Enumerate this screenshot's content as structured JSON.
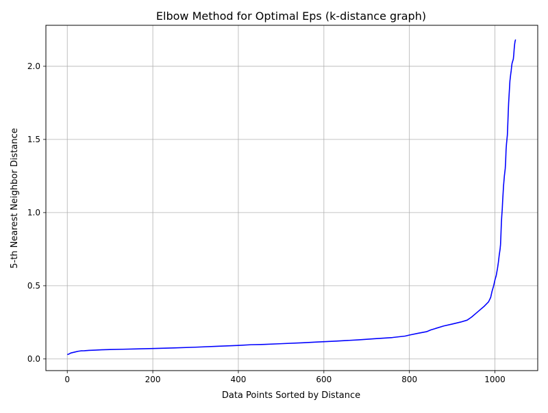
{
  "chart_data": {
    "type": "line",
    "title": "Elbow Method for Optimal Eps (k-distance graph)",
    "xlabel": "Data Points Sorted by Distance",
    "ylabel": "5-th Nearest Neighbor Distance",
    "xlim": [
      -50,
      1100
    ],
    "ylim": [
      -0.08,
      2.28
    ],
    "xticks": [
      0,
      200,
      400,
      600,
      800,
      1000
    ],
    "yticks": [
      0.0,
      0.5,
      1.0,
      1.5,
      2.0
    ],
    "xtick_labels": [
      "0",
      "200",
      "400",
      "600",
      "800",
      "1000"
    ],
    "ytick_labels": [
      "0.0",
      "0.5",
      "1.0",
      "1.5",
      "2.0"
    ],
    "grid": true,
    "line_color": "#0000ff",
    "series": [
      {
        "x": [
          0,
          3,
          8,
          12,
          18,
          25,
          32,
          40,
          50,
          65,
          80,
          100,
          130,
          160,
          200,
          250,
          300,
          350,
          400,
          430,
          460,
          500,
          550,
          580,
          630,
          680,
          720,
          760,
          790,
          800,
          820,
          840,
          850,
          860,
          880,
          900,
          920,
          935,
          945,
          955,
          965,
          975,
          985,
          990,
          993,
          997,
          1000,
          1003,
          1006,
          1008,
          1010,
          1012,
          1013,
          1014,
          1015,
          1016,
          1017,
          1018,
          1020,
          1022,
          1024,
          1025,
          1026,
          1027,
          1028,
          1029,
          1030,
          1031,
          1032,
          1033,
          1035,
          1037,
          1038,
          1039,
          1040,
          1041,
          1042,
          1043,
          1044,
          1045,
          1046,
          1047,
          1048,
          1049
        ],
        "y": [
          0.03,
          0.032,
          0.04,
          0.043,
          0.047,
          0.052,
          0.055,
          0.056,
          0.058,
          0.06,
          0.062,
          0.064,
          0.066,
          0.068,
          0.071,
          0.075,
          0.08,
          0.086,
          0.092,
          0.097,
          0.099,
          0.104,
          0.11,
          0.115,
          0.122,
          0.13,
          0.138,
          0.146,
          0.156,
          0.163,
          0.175,
          0.186,
          0.198,
          0.207,
          0.225,
          0.238,
          0.252,
          0.265,
          0.285,
          0.31,
          0.335,
          0.36,
          0.39,
          0.42,
          0.46,
          0.5,
          0.54,
          0.57,
          0.62,
          0.66,
          0.71,
          0.75,
          0.78,
          0.85,
          0.93,
          0.98,
          1.02,
          1.08,
          1.18,
          1.25,
          1.3,
          1.35,
          1.43,
          1.47,
          1.5,
          1.53,
          1.6,
          1.68,
          1.75,
          1.8,
          1.9,
          1.95,
          1.97,
          2.0,
          2.02,
          2.03,
          2.04,
          2.05,
          2.08,
          2.12,
          2.15,
          2.17,
          2.18,
          2.18
        ]
      }
    ]
  }
}
